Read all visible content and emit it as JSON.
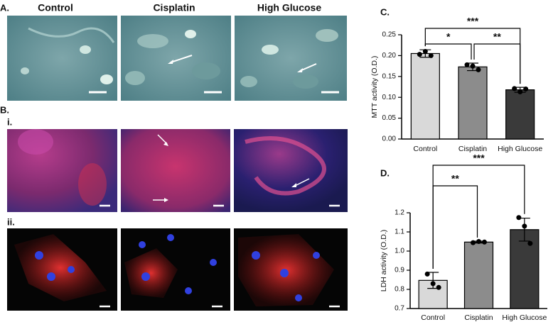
{
  "figure": {
    "panel_labels": [
      "A.",
      "B.",
      "C.",
      "D."
    ],
    "row_labels": [
      "i.",
      "ii."
    ],
    "column_headers": [
      "Control",
      "Cisplatin",
      "High Glucose"
    ]
  },
  "chart_data": [
    {
      "type": "bar",
      "ylabel": "MTT activity (O.D.)",
      "categories": [
        "Control",
        "Cisplatin",
        "High Glucose"
      ],
      "values": [
        0.205,
        0.173,
        0.118
      ],
      "errors": [
        0.009,
        0.009,
        0.006
      ],
      "points": [
        [
          0.203,
          0.21,
          0.2
        ],
        [
          0.178,
          0.175,
          0.166
        ],
        [
          0.121,
          0.113,
          0.12
        ]
      ],
      "colors": [
        "#d9d9d9",
        "#8c8c8c",
        "#3a3a3a"
      ],
      "ylim": [
        0,
        0.25
      ],
      "yticks": [
        {
          "value": 0,
          "label": "0.00"
        },
        0.05,
        {
          "value": 0.1,
          "label": "0.10"
        },
        0.15,
        {
          "value": 0.2,
          "label": "0.20"
        },
        0.25
      ],
      "comparisons": [
        {
          "categories": [
            "Control",
            "Cisplatin"
          ],
          "label": "*"
        },
        {
          "categories": [
            "Cisplatin",
            "High Glucose"
          ],
          "label": "**"
        },
        {
          "categories": [
            "Control",
            "High Glucose"
          ],
          "label": "***"
        }
      ]
    },
    {
      "type": "bar",
      "ylabel": "LDH activity (O.D.)",
      "categories": [
        "Control",
        "Cisplatin",
        "High Glucose"
      ],
      "values": [
        0.847,
        1.047,
        1.112
      ],
      "errors": [
        0.042,
        0.005,
        0.06
      ],
      "points": [
        [
          0.88,
          0.83,
          0.81
        ],
        [
          1.044,
          1.05,
          1.047
        ],
        [
          1.175,
          1.13,
          1.04
        ]
      ],
      "colors": [
        "#d9d9d9",
        "#8c8c8c",
        "#3a3a3a"
      ],
      "ylim": [
        0.7,
        1.2
      ],
      "yticks": [
        0.7,
        0.8,
        0.9,
        {
          "value": 1,
          "label": "1.0"
        },
        1.1,
        1.2
      ],
      "comparisons": [
        {
          "categories": [
            "Control",
            "Cisplatin"
          ],
          "label": "**"
        },
        {
          "categories": [
            "Control",
            "High Glucose"
          ],
          "label": "***"
        }
      ]
    }
  ]
}
